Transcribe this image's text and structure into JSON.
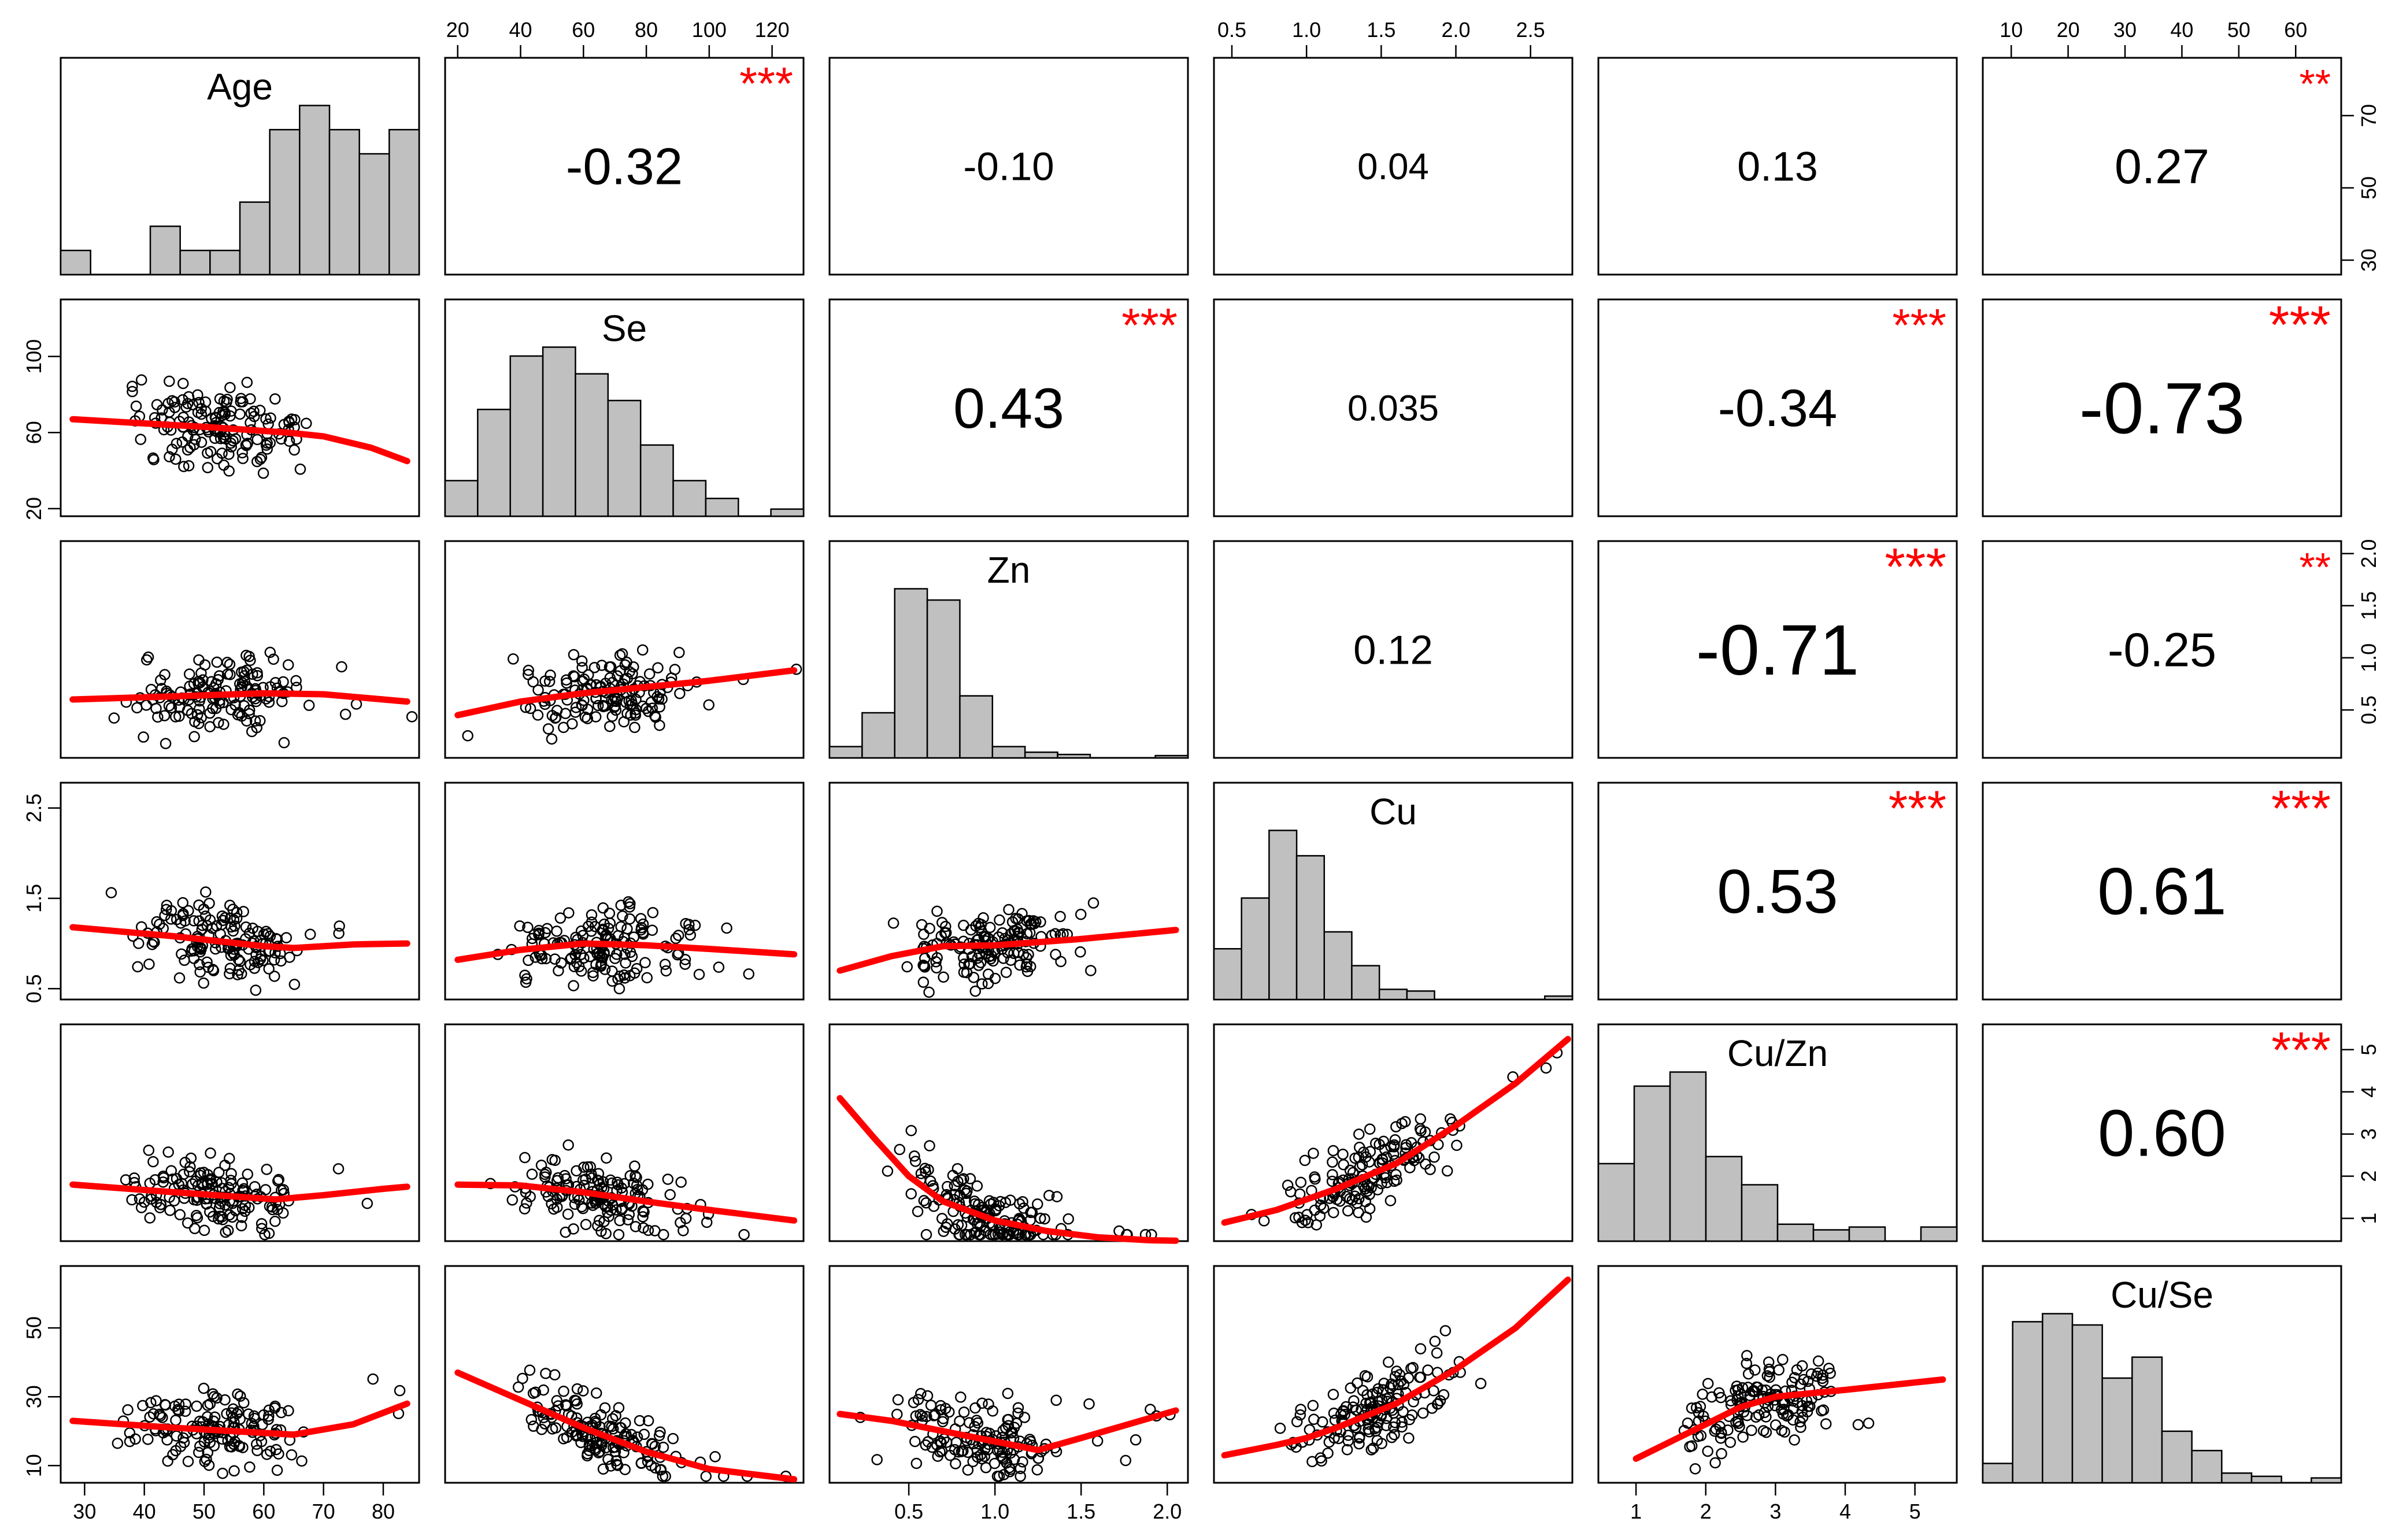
{
  "chart_data": {
    "type": "scatter-matrix",
    "variables": [
      "Age",
      "Se",
      "Zn",
      "Cu",
      "Cu/Zn",
      "Cu/Se"
    ],
    "colors": {
      "smooth": "#ff0000",
      "stars": "#ff0000",
      "hist_fill": "#c0c0c0",
      "points": "#000000"
    },
    "axes": {
      "Age": {
        "range": [
          26,
          86
        ],
        "ticks": [
          "30",
          "40",
          "50",
          "60",
          "70",
          "80"
        ],
        "tick_values": [
          30,
          40,
          50,
          60,
          70,
          80
        ]
      },
      "Se": {
        "range": [
          16,
          130
        ],
        "ticks": [
          "20",
          "40",
          "60",
          "80",
          "100",
          "120"
        ],
        "tick_values": [
          20,
          40,
          60,
          80,
          100,
          120
        ]
      },
      "Zn": {
        "range": [
          0.04,
          2.12
        ],
        "ticks": [
          "0.5",
          "1.0",
          "1.5",
          "2.0"
        ],
        "tick_values": [
          0.5,
          1.0,
          1.5,
          2.0
        ]
      },
      "Cu": {
        "range": [
          0.38,
          2.78
        ],
        "ticks": [
          "0.5",
          "1.0",
          "1.5",
          "2.0",
          "2.5"
        ],
        "tick_values": [
          0.5,
          1.0,
          1.5,
          2.0,
          2.5
        ]
      },
      "Cu/Zn": {
        "range": [
          0.46,
          5.6
        ],
        "ticks": [
          "1",
          "2",
          "3",
          "4",
          "5"
        ],
        "tick_values": [
          1,
          2,
          3,
          4,
          5
        ]
      },
      "Cu/Se": {
        "range": [
          5,
          68
        ],
        "ticks": [
          "10",
          "20",
          "30",
          "40",
          "50",
          "60"
        ],
        "tick_values": [
          10,
          20,
          30,
          40,
          50,
          60
        ]
      }
    },
    "left_axis_ticks": {
      "Se": {
        "ticks": [
          "20",
          "60",
          "100"
        ],
        "tick_values": [
          20,
          60,
          100
        ]
      },
      "Cu": {
        "ticks": [
          "0.5",
          "1.5",
          "2.5"
        ],
        "tick_values": [
          0.5,
          1.5,
          2.5
        ]
      },
      "Cu/Se": {
        "ticks": [
          "10",
          "30",
          "50"
        ],
        "tick_values": [
          10,
          30,
          50
        ]
      }
    },
    "right_axis_ticks": {
      "Age": {
        "ticks": [
          "30",
          "50",
          "70"
        ],
        "tick_values": [
          30,
          50,
          70
        ]
      },
      "Zn": {
        "ticks": [
          "0.5",
          "1.0",
          "1.5",
          "2.0"
        ],
        "tick_values": [
          0.5,
          1.0,
          1.5,
          2.0
        ]
      },
      "Cu/Zn": {
        "ticks": [
          "1",
          "2",
          "3",
          "4",
          "5"
        ],
        "tick_values": [
          1,
          2,
          3,
          4,
          5
        ]
      }
    },
    "correlations": [
      {
        "row": 0,
        "col": 1,
        "value": "-0.32",
        "stars": "***"
      },
      {
        "row": 0,
        "col": 2,
        "value": "-0.10",
        "stars": ""
      },
      {
        "row": 0,
        "col": 3,
        "value": "0.04",
        "stars": ""
      },
      {
        "row": 0,
        "col": 4,
        "value": "0.13",
        "stars": ""
      },
      {
        "row": 0,
        "col": 5,
        "value": "0.27",
        "stars": "**"
      },
      {
        "row": 1,
        "col": 2,
        "value": "0.43",
        "stars": "***"
      },
      {
        "row": 1,
        "col": 3,
        "value": "0.035",
        "stars": ""
      },
      {
        "row": 1,
        "col": 4,
        "value": "-0.34",
        "stars": "***"
      },
      {
        "row": 1,
        "col": 5,
        "value": "-0.73",
        "stars": "***"
      },
      {
        "row": 2,
        "col": 3,
        "value": "0.12",
        "stars": ""
      },
      {
        "row": 2,
        "col": 4,
        "value": "-0.71",
        "stars": "***"
      },
      {
        "row": 2,
        "col": 5,
        "value": "-0.25",
        "stars": "**"
      },
      {
        "row": 3,
        "col": 4,
        "value": "0.53",
        "stars": "***"
      },
      {
        "row": 3,
        "col": 5,
        "value": "0.61",
        "stars": "***"
      },
      {
        "row": 4,
        "col": 5,
        "value": "0.60",
        "stars": "***"
      }
    ],
    "histograms": {
      "Age": {
        "bin_edges": [
          25,
          30,
          35,
          40,
          45,
          50,
          55,
          60,
          65,
          70,
          75,
          80,
          85
        ],
        "counts": [
          1,
          0,
          0,
          2,
          1,
          1,
          3,
          6,
          7,
          6,
          5,
          6
        ]
      },
      "Se": {
        "bin_edges": [
          20,
          30,
          40,
          50,
          60,
          70,
          80,
          90,
          100,
          110,
          120,
          130
        ],
        "counts": [
          2,
          6,
          9,
          9.5,
          8,
          6.5,
          4,
          2,
          1,
          0,
          0.4
        ]
      },
      "Zn": {
        "bin_edges": [
          0,
          0.2,
          0.4,
          0.6,
          0.8,
          1.0,
          1.2,
          1.4,
          1.6,
          1.8,
          2.0,
          2.2
        ],
        "counts": [
          1,
          4,
          15,
          14,
          5.5,
          1,
          0.5,
          0.3,
          0,
          0,
          0.2
        ]
      },
      "Cu": {
        "bin_edges": [
          0.2,
          0.4,
          0.6,
          0.8,
          1.0,
          1.2,
          1.4,
          1.6,
          1.8,
          2.0,
          2.2,
          2.4,
          2.6,
          2.8
        ],
        "counts": [
          3,
          6,
          10,
          8.5,
          4,
          2,
          0.6,
          0.5,
          0,
          0,
          0,
          0,
          0.2
        ]
      },
      "Cu/Zn": {
        "bin_edges": [
          0.5,
          1.0,
          1.5,
          2.0,
          2.5,
          3.0,
          3.5,
          4.0,
          4.5,
          5.0,
          5.5
        ],
        "counts": [
          5.5,
          11,
          12,
          6,
          4,
          1.2,
          0.8,
          1,
          0,
          1
        ]
      },
      "Cu/Se": {
        "bin_edges": [
          5,
          10,
          15,
          20,
          25,
          30,
          35,
          40,
          45,
          50,
          55,
          60,
          65
        ],
        "counts": [
          1.2,
          10,
          10.5,
          9.8,
          6.5,
          7.8,
          3.2,
          2,
          0.6,
          0.4,
          0,
          0.3
        ]
      }
    },
    "smooth_lines": [
      {
        "row": 1,
        "col": 0,
        "x": [
          28,
          50,
          64,
          70,
          78,
          84
        ],
        "y": [
          67,
          63,
          60,
          58,
          52,
          45
        ]
      },
      {
        "row": 2,
        "col": 0,
        "x": [
          28,
          45,
          60,
          70,
          80,
          84
        ],
        "y": [
          0.6,
          0.63,
          0.66,
          0.65,
          0.6,
          0.58
        ]
      },
      {
        "row": 2,
        "col": 1,
        "x": [
          20,
          40,
          60,
          80,
          100,
          127
        ],
        "y": [
          0.45,
          0.58,
          0.66,
          0.72,
          0.78,
          0.88
        ]
      },
      {
        "row": 3,
        "col": 0,
        "x": [
          28,
          45,
          60,
          65,
          75,
          84
        ],
        "y": [
          1.18,
          1.08,
          0.97,
          0.95,
          0.99,
          1.0
        ]
      },
      {
        "row": 3,
        "col": 1,
        "x": [
          20,
          40,
          60,
          80,
          100,
          127
        ],
        "y": [
          0.82,
          0.93,
          1.0,
          0.98,
          0.94,
          0.88
        ]
      },
      {
        "row": 3,
        "col": 2,
        "x": [
          0.1,
          0.4,
          0.7,
          1.0,
          1.5,
          2.05
        ],
        "y": [
          0.7,
          0.86,
          0.97,
          0.98,
          1.05,
          1.15
        ]
      },
      {
        "row": 4,
        "col": 0,
        "x": [
          28,
          45,
          62,
          70,
          80,
          84
        ],
        "y": [
          1.8,
          1.62,
          1.45,
          1.55,
          1.7,
          1.75
        ]
      },
      {
        "row": 4,
        "col": 1,
        "x": [
          20,
          40,
          60,
          80,
          100,
          127
        ],
        "y": [
          1.8,
          1.78,
          1.62,
          1.4,
          1.2,
          0.95
        ]
      },
      {
        "row": 4,
        "col": 2,
        "x": [
          0.1,
          0.3,
          0.5,
          0.7,
          1.0,
          1.3,
          1.6,
          1.9,
          2.05
        ],
        "y": [
          3.85,
          2.9,
          2.0,
          1.4,
          0.95,
          0.7,
          0.55,
          0.48,
          0.47
        ]
      },
      {
        "row": 4,
        "col": 3,
        "x": [
          0.45,
          0.8,
          1.0,
          1.2,
          1.6,
          2.0,
          2.4,
          2.75
        ],
        "y": [
          0.9,
          1.2,
          1.45,
          1.7,
          2.3,
          3.2,
          4.2,
          5.25
        ]
      },
      {
        "row": 5,
        "col": 0,
        "x": [
          28,
          45,
          60,
          65,
          75,
          84
        ],
        "y": [
          23,
          21,
          19.5,
          19,
          22,
          28
        ]
      },
      {
        "row": 5,
        "col": 1,
        "x": [
          20,
          40,
          60,
          80,
          100,
          127
        ],
        "y": [
          37,
          29,
          21,
          14,
          9,
          6
        ]
      },
      {
        "row": 5,
        "col": 2,
        "x": [
          0.1,
          0.4,
          0.8,
          1.25,
          1.5,
          2.05
        ],
        "y": [
          25,
          23,
          19,
          14.5,
          18,
          26
        ]
      },
      {
        "row": 5,
        "col": 3,
        "x": [
          0.45,
          0.8,
          1.0,
          1.2,
          1.6,
          2.0,
          2.4,
          2.75
        ],
        "y": [
          13,
          16,
          18,
          21,
          28,
          38,
          50,
          64
        ]
      },
      {
        "row": 5,
        "col": 4,
        "x": [
          1.0,
          1.5,
          2.0,
          2.5,
          3.0,
          4.0,
          5.4
        ],
        "y": [
          12,
          17,
          22,
          27,
          30,
          32,
          35
        ]
      }
    ]
  }
}
